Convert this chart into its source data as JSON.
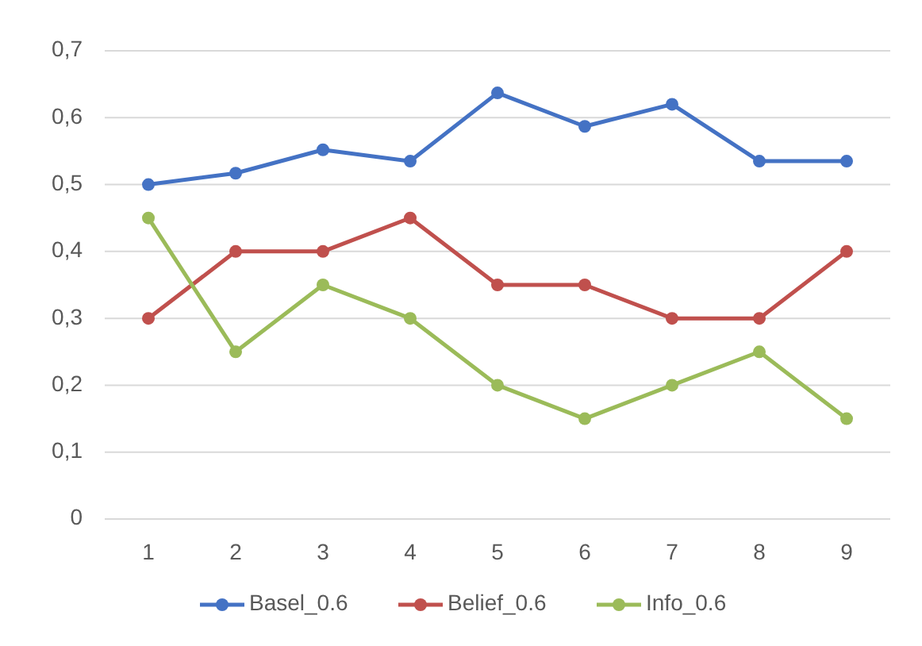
{
  "chart_data": {
    "type": "line",
    "categories": [
      "1",
      "2",
      "3",
      "4",
      "5",
      "6",
      "7",
      "8",
      "9"
    ],
    "series": [
      {
        "name": "Basel_0.6",
        "color": "#4472c4",
        "values": [
          0.5,
          0.517,
          0.552,
          0.535,
          0.637,
          0.587,
          0.62,
          0.535,
          0.535
        ]
      },
      {
        "name": "Belief_0.6",
        "color": "#c0504d",
        "values": [
          0.3,
          0.4,
          0.4,
          0.45,
          0.35,
          0.35,
          0.3,
          0.3,
          0.4
        ]
      },
      {
        "name": "Info_0.6",
        "color": "#9bbb59",
        "values": [
          0.45,
          0.25,
          0.35,
          0.3,
          0.2,
          0.15,
          0.2,
          0.25,
          0.15
        ]
      }
    ],
    "ylim": [
      0,
      0.7
    ],
    "yticks": [
      0,
      {
        "value": 0.1,
        "label": "0,1"
      },
      {
        "value": 0.2,
        "label": "0,2"
      },
      {
        "value": 0.3,
        "label": "0,3"
      },
      {
        "value": 0.4,
        "label": "0,4"
      },
      {
        "value": 0.5,
        "label": "0,5"
      },
      {
        "value": 0.6,
        "label": "0,6"
      },
      {
        "value": 0.7,
        "label": "0,7"
      }
    ],
    "grid": "y",
    "legend": "bottom",
    "marker": "circle",
    "line_style": "solid"
  }
}
